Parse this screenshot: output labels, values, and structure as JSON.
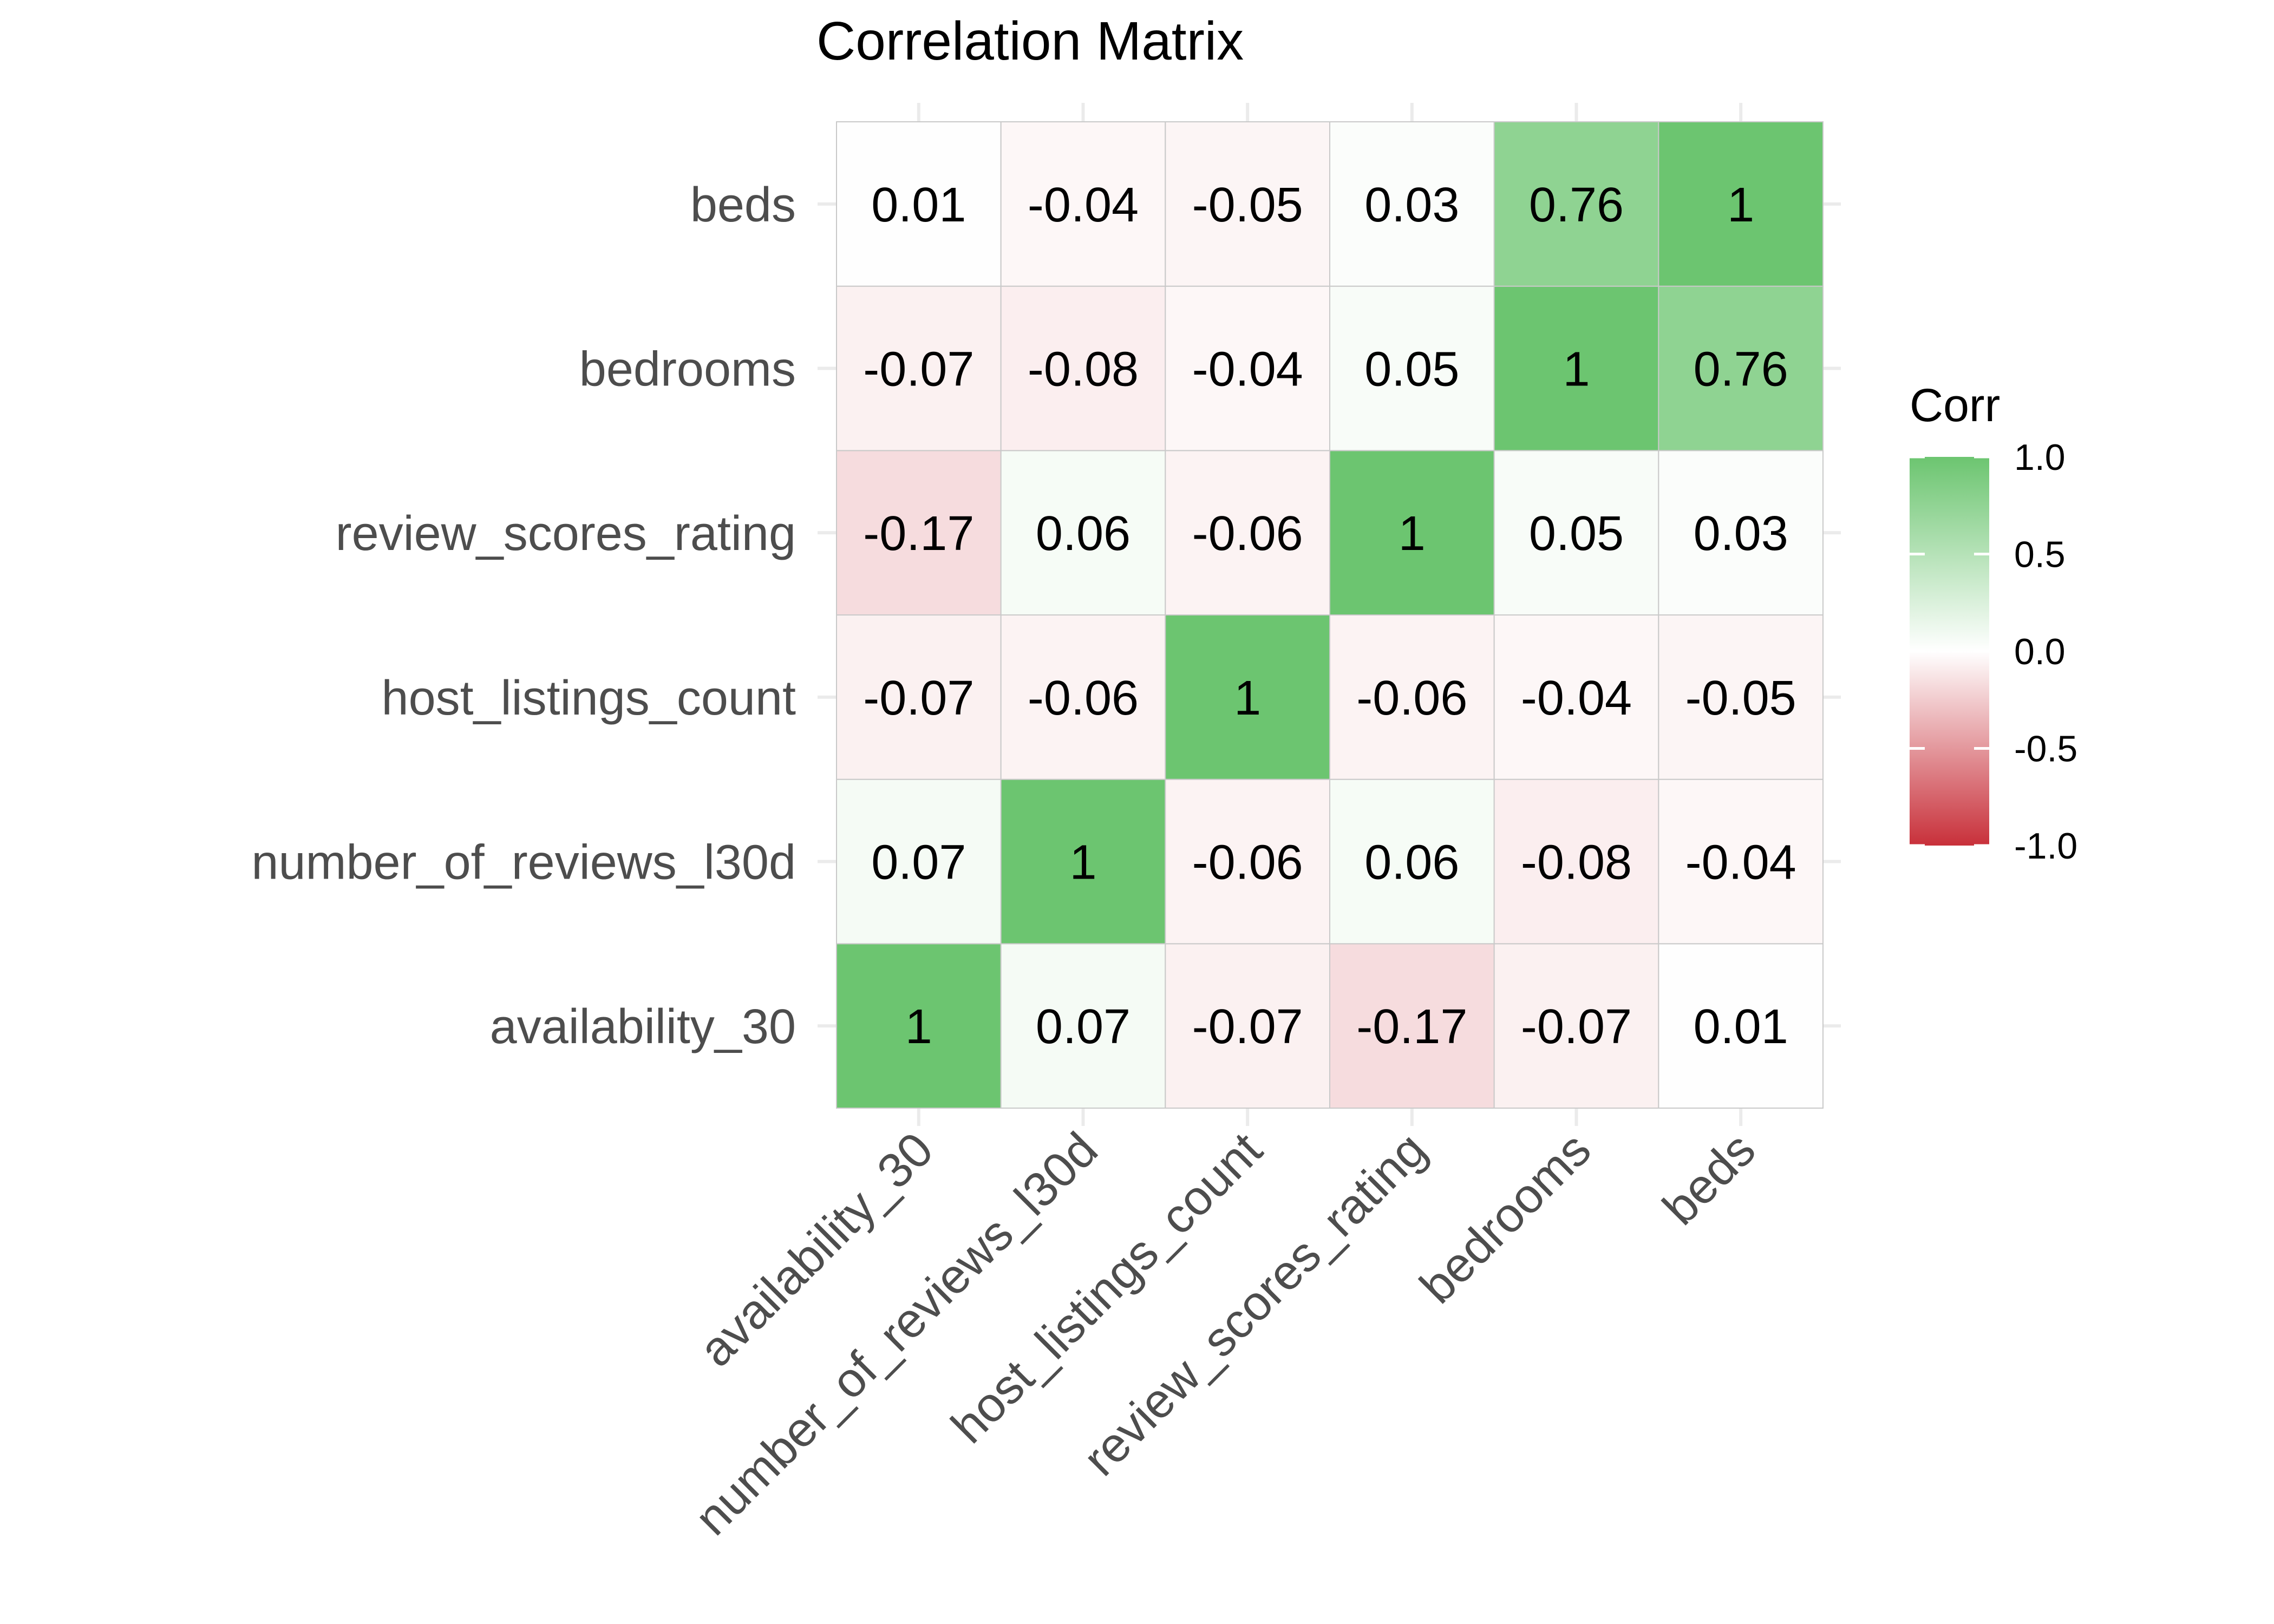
{
  "chart_data": {
    "type": "heatmap",
    "title": "Correlation Matrix",
    "xlabel": "",
    "ylabel": "",
    "variables": [
      "availability_30",
      "number_of_reviews_l30d",
      "host_listings_count",
      "review_scores_rating",
      "bedrooms",
      "beds"
    ],
    "x_categories": [
      "availability_30",
      "number_of_reviews_l30d",
      "host_listings_count",
      "review_scores_rating",
      "bedrooms",
      "beds"
    ],
    "y_categories_bottom_to_top": [
      "availability_30",
      "number_of_reviews_l30d",
      "host_listings_count",
      "review_scores_rating",
      "bedrooms",
      "beds"
    ],
    "matrix": [
      [
        1,
        0.07,
        -0.07,
        -0.17,
        -0.07,
        0.01
      ],
      [
        0.07,
        1,
        -0.06,
        0.06,
        -0.08,
        -0.04
      ],
      [
        -0.07,
        -0.06,
        1,
        -0.06,
        -0.04,
        -0.05
      ],
      [
        -0.17,
        0.06,
        -0.06,
        1,
        0.05,
        0.03
      ],
      [
        -0.07,
        -0.08,
        -0.04,
        0.05,
        1,
        0.76
      ],
      [
        0.01,
        -0.04,
        -0.05,
        0.03,
        0.76,
        1
      ]
    ],
    "legend": {
      "title": "Corr",
      "placement": "right",
      "range": [
        -1,
        1
      ],
      "ticks": [
        "1.0",
        "0.5",
        "0.0",
        "-0.5",
        "-1.0"
      ],
      "tick_values": [
        1.0,
        0.5,
        0.0,
        -0.5,
        -1.0
      ]
    },
    "colors": {
      "low": "#c8303a",
      "mid": "#ffffff",
      "high": "#6cc570",
      "grid": "#ebebeb",
      "tile_border": "#c9c9c9"
    },
    "grid": true
  }
}
